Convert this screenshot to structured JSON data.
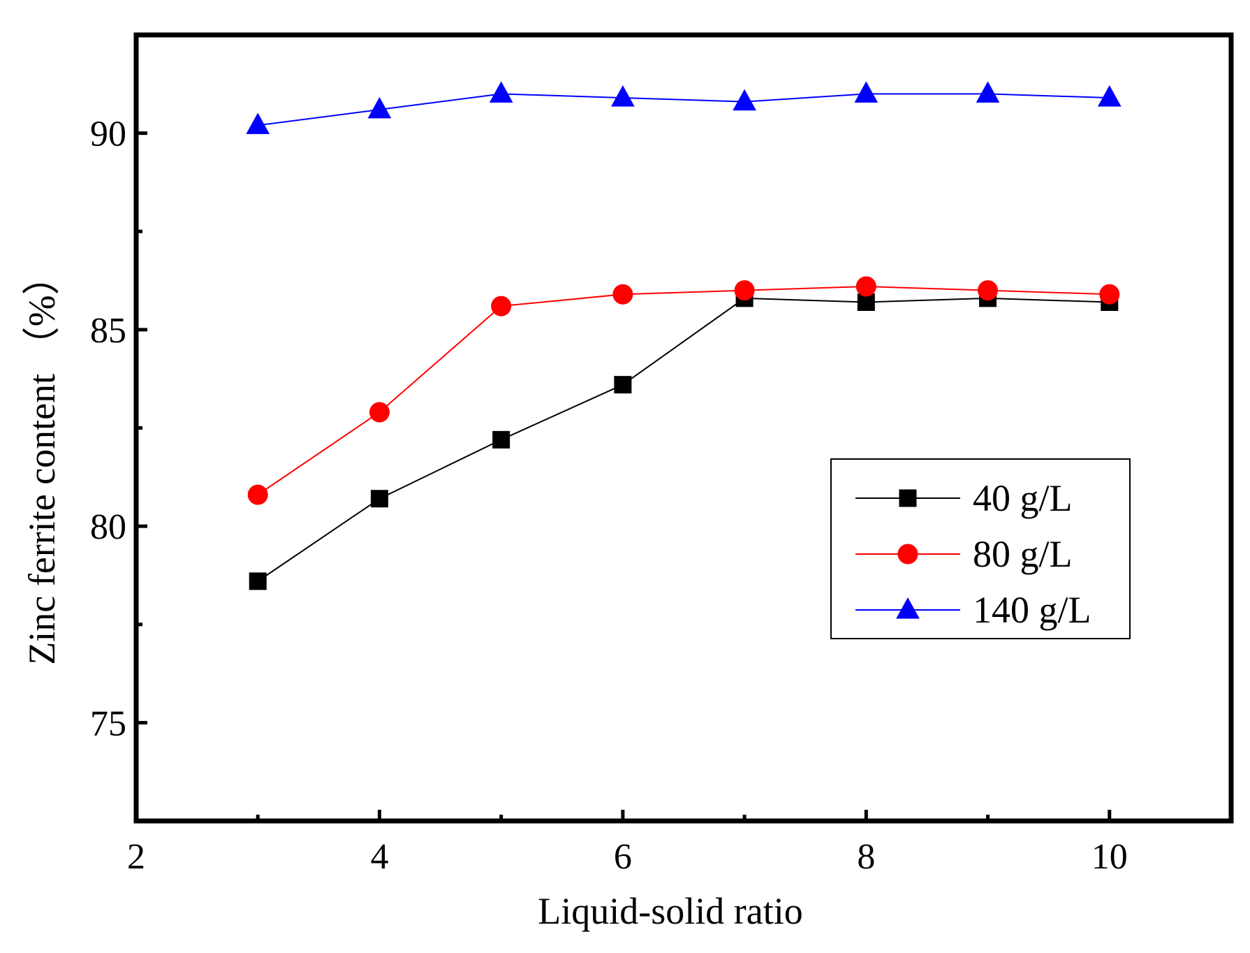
{
  "chart_data": {
    "type": "line",
    "xlabel": "Liquid-solid ratio",
    "ylabel": "Zinc ferrite content （%）",
    "xlim": [
      2,
      11
    ],
    "ylim": [
      72.5,
      92.5
    ],
    "xticks": [
      2,
      4,
      6,
      8,
      10
    ],
    "xticks_minor": [
      3,
      5,
      7,
      9
    ],
    "yticks": [
      75,
      80,
      85,
      90
    ],
    "yticks_minor": [
      77.5,
      82.5,
      87.5
    ],
    "grid": false,
    "legend_position": "right",
    "series": [
      {
        "name": "40 g/L",
        "color": "#000000",
        "marker": "square",
        "x": [
          3,
          4,
          5,
          6,
          7,
          8,
          9,
          10
        ],
        "y": [
          78.6,
          80.7,
          82.2,
          83.6,
          85.8,
          85.7,
          85.8,
          85.7
        ]
      },
      {
        "name": "80 g/L",
        "color": "#ff0000",
        "marker": "circle",
        "x": [
          3,
          4,
          5,
          6,
          7,
          8,
          9,
          10
        ],
        "y": [
          80.8,
          82.9,
          85.6,
          85.9,
          86.0,
          86.1,
          86.0,
          85.9
        ]
      },
      {
        "name": "140 g/L",
        "color": "#0000ff",
        "marker": "triangle",
        "x": [
          3,
          4,
          5,
          6,
          7,
          8,
          9,
          10
        ],
        "y": [
          90.2,
          90.6,
          91.0,
          90.9,
          90.8,
          91.0,
          91.0,
          90.9
        ]
      }
    ]
  }
}
